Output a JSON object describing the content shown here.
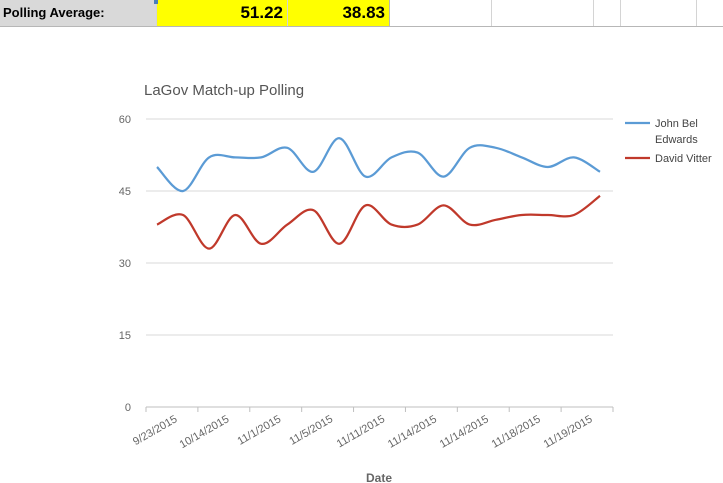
{
  "spreadsheet": {
    "label": "Polling Average:",
    "values": [
      "51.22",
      "38.83"
    ]
  },
  "chart_data": {
    "type": "line",
    "title": "LaGov Match-up Polling",
    "xlabel": "Date",
    "ylabel": "",
    "ylim": [
      0,
      60
    ],
    "yticks": [
      0,
      15,
      30,
      45,
      60
    ],
    "grid": true,
    "legend": "right",
    "x_tick_labels": [
      "9/23/2015",
      "10/14/2015",
      "11/1/2015",
      "11/5/2015",
      "11/11/2015",
      "11/14/2015",
      "11/14/2015",
      "11/18/2015",
      "11/19/2015"
    ],
    "series": [
      {
        "name": "John Bel Edwards",
        "color": "#5b9bd5",
        "values": [
          50,
          45,
          52,
          52,
          52,
          54,
          49,
          56,
          48,
          52,
          53,
          48,
          54,
          54,
          52,
          50,
          52,
          49
        ]
      },
      {
        "name": "David Vitter",
        "color": "#c0392b",
        "values": [
          38,
          40,
          33,
          40,
          34,
          38,
          41,
          34,
          42,
          38,
          38,
          42,
          38,
          39,
          40,
          40,
          40,
          44
        ]
      }
    ]
  }
}
